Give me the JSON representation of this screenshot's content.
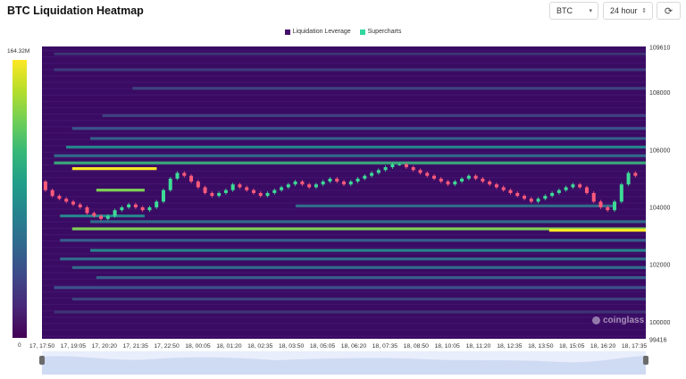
{
  "header": {
    "title": "BTC Liquidation Heatmap"
  },
  "controls": {
    "symbol": "BTC",
    "range": "24 hour",
    "refresh_icon": "refresh-icon"
  },
  "legend": [
    {
      "label": "Liquidation Leverage",
      "color": "#44106a"
    },
    {
      "label": "Supercharts",
      "color": "#2fd79c"
    }
  ],
  "colorbar": {
    "max_label": "164.32M",
    "min_label": "0"
  },
  "watermark": "coinglass",
  "chart_data": {
    "type": "heatmap",
    "title": "BTC Liquidation Heatmap",
    "x_ticks": [
      "17, 17:50",
      "17, 19:05",
      "17, 20:20",
      "17, 21:35",
      "17, 22:50",
      "18, 00:05",
      "18, 01:20",
      "18, 02:35",
      "18, 03:50",
      "18, 05:05",
      "18, 06:20",
      "18, 07:35",
      "18, 08:50",
      "18, 10:05",
      "18, 11:20",
      "18, 12:35",
      "18, 13:50",
      "18, 15:05",
      "18, 16:20",
      "18, 17:35"
    ],
    "y_ticks": [
      "109610",
      "108000",
      "106000",
      "104000",
      "102000",
      "100000",
      "99416"
    ],
    "ylim": [
      99416,
      109610
    ],
    "zlim": [
      0,
      164.32
    ],
    "price_series": [
      104900,
      104600,
      104400,
      104300,
      104200,
      104100,
      104000,
      103800,
      103700,
      103600,
      103700,
      103900,
      104000,
      104100,
      104000,
      103900,
      104000,
      104200,
      104600,
      105000,
      105200,
      105100,
      104900,
      104700,
      104500,
      104400,
      104500,
      104600,
      104800,
      104700,
      104600,
      104500,
      104400,
      104500,
      104600,
      104700,
      104800,
      104900,
      104800,
      104700,
      104800,
      104900,
      105000,
      104900,
      104800,
      104900,
      105000,
      105100,
      105200,
      105300,
      105400,
      105500,
      105500,
      105400,
      105300,
      105200,
      105100,
      105000,
      104900,
      104800,
      104900,
      105000,
      105100,
      105000,
      104900,
      104800,
      104700,
      104600,
      104500,
      104400,
      104300,
      104200,
      104300,
      104400,
      104500,
      104600,
      104700,
      104800,
      104700,
      104500,
      104200,
      104000,
      103900,
      104200,
      104800,
      105200,
      105100
    ],
    "bands": [
      {
        "price": 103250,
        "intensity": 0.8,
        "start": 0.05,
        "end": 1
      },
      {
        "price": 103200,
        "intensity": 1,
        "start": 0.84,
        "end": 1
      },
      {
        "price": 105350,
        "intensity": 1,
        "start": 0.05,
        "end": 0.19
      },
      {
        "price": 105550,
        "intensity": 0.6,
        "start": 0.02,
        "end": 1
      },
      {
        "price": 104600,
        "intensity": 0.8,
        "start": 0.09,
        "end": 0.17
      },
      {
        "price": 105800,
        "intensity": 0.35,
        "start": 0.02,
        "end": 1
      },
      {
        "price": 106100,
        "intensity": 0.45,
        "start": 0.04,
        "end": 1
      },
      {
        "price": 106400,
        "intensity": 0.3,
        "start": 0.08,
        "end": 1
      },
      {
        "price": 106750,
        "intensity": 0.25,
        "start": 0.05,
        "end": 1
      },
      {
        "price": 107200,
        "intensity": 0.2,
        "start": 0.1,
        "end": 1
      },
      {
        "price": 108150,
        "intensity": 0.2,
        "start": 0.15,
        "end": 1
      },
      {
        "price": 108800,
        "intensity": 0.18,
        "start": 0.02,
        "end": 1
      },
      {
        "price": 109350,
        "intensity": 0.15,
        "start": 0.02,
        "end": 1
      },
      {
        "price": 103700,
        "intensity": 0.45,
        "start": 0.03,
        "end": 0.17
      },
      {
        "price": 103500,
        "intensity": 0.35,
        "start": 0.08,
        "end": 1
      },
      {
        "price": 102850,
        "intensity": 0.3,
        "start": 0.03,
        "end": 1
      },
      {
        "price": 102500,
        "intensity": 0.45,
        "start": 0.08,
        "end": 1
      },
      {
        "price": 102200,
        "intensity": 0.35,
        "start": 0.03,
        "end": 1
      },
      {
        "price": 101900,
        "intensity": 0.35,
        "start": 0.05,
        "end": 1
      },
      {
        "price": 101550,
        "intensity": 0.3,
        "start": 0.09,
        "end": 1
      },
      {
        "price": 101200,
        "intensity": 0.25,
        "start": 0.02,
        "end": 1
      },
      {
        "price": 100800,
        "intensity": 0.2,
        "start": 0.05,
        "end": 1
      },
      {
        "price": 100350,
        "intensity": 0.15,
        "start": 0.02,
        "end": 1
      },
      {
        "price": 104050,
        "intensity": 0.35,
        "start": 0.42,
        "end": 0.95
      }
    ]
  }
}
